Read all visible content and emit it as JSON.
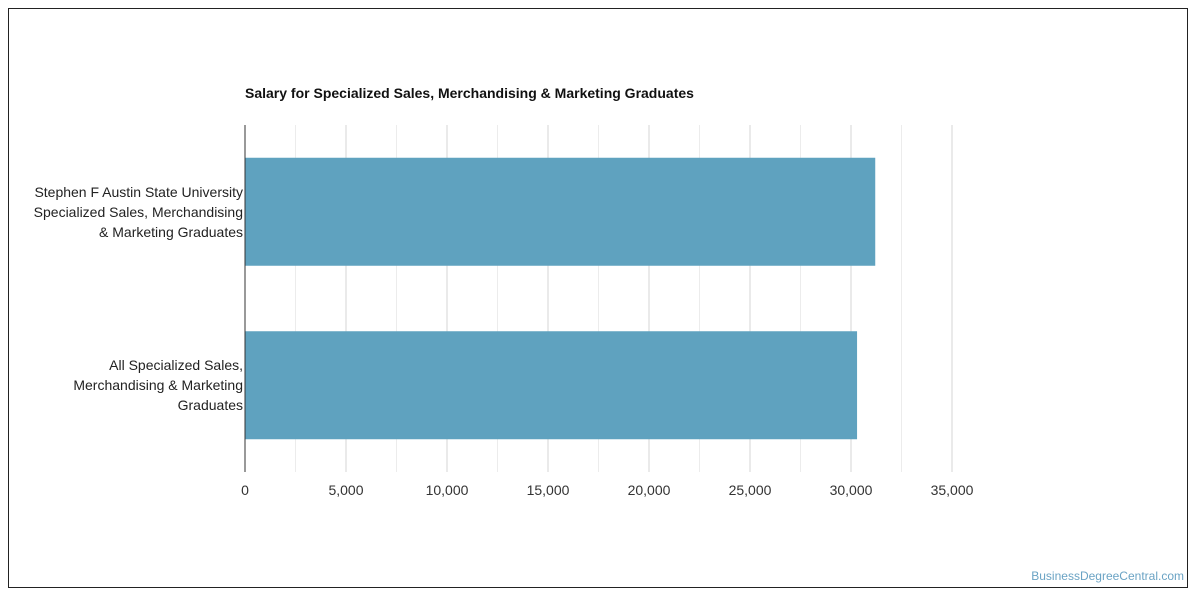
{
  "chart_data": {
    "type": "bar",
    "orientation": "horizontal",
    "title": "Salary for Specialized Sales, Merchandising & Marketing Graduates",
    "categories": [
      "Stephen F Austin State University\nSpecialized Sales, Merchandising\n& Marketing Graduates",
      "All Specialized Sales,\nMerchandising & Marketing\nGraduates"
    ],
    "values": [
      31200,
      30300
    ],
    "xlim": [
      0,
      35000
    ],
    "xticks": [
      0,
      5000,
      10000,
      15000,
      20000,
      25000,
      30000,
      35000
    ],
    "xtick_labels": [
      "0",
      "5,000",
      "10,000",
      "15,000",
      "20,000",
      "25,000",
      "30,000",
      "35,000"
    ],
    "grid": true,
    "bar_color": "#5fa2bf",
    "grid_color": "#dddddd"
  },
  "watermark": "BusinessDegreeCentral.com"
}
